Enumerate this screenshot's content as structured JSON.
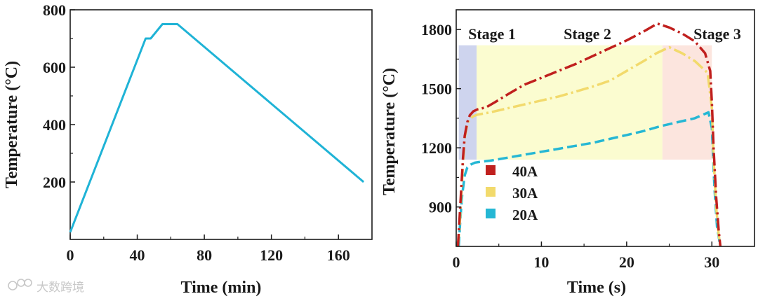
{
  "chart_data": [
    {
      "type": "line",
      "title": "",
      "xlabel": "Time (min)",
      "ylabel": "Temperature (°C)",
      "xlim": [
        0,
        180
      ],
      "ylim": [
        0,
        800
      ],
      "xticks": [
        0,
        40,
        80,
        120,
        160
      ],
      "yticks": [
        200,
        400,
        600,
        800
      ],
      "xtick_labels": [
        "0",
        "40",
        "80",
        "120",
        "160"
      ],
      "ytick_labels": [
        "200",
        "400",
        "600",
        "800"
      ],
      "grid": false,
      "series": [
        {
          "name": "temperature",
          "color": "#1fb3d6",
          "style": "solid",
          "x": [
            0,
            45,
            48,
            55,
            64,
            175
          ],
          "y": [
            25,
            700,
            700,
            750,
            750,
            200
          ]
        }
      ]
    },
    {
      "type": "line",
      "title": "",
      "xlabel": "Time (s)",
      "ylabel": "Temperature (°C)",
      "xlim": [
        0,
        35
      ],
      "ylim": [
        700,
        1900
      ],
      "xticks": [
        0,
        10,
        20,
        30
      ],
      "yticks": [
        900,
        1200,
        1500,
        1800
      ],
      "xtick_labels": [
        "0",
        "10",
        "20",
        "30"
      ],
      "ytick_labels": [
        "900",
        "1200",
        "1500",
        "1800"
      ],
      "grid": false,
      "legend_position": "bottom-left",
      "stages": [
        {
          "label": "Stage 1",
          "x_range": [
            0.3,
            2.4
          ],
          "y_range": [
            1140,
            1720
          ],
          "color": "#c5cdeb"
        },
        {
          "label": "Stage 2",
          "x_range": [
            2.4,
            24.2
          ],
          "y_range": [
            1140,
            1720
          ],
          "color": "#fafcc8"
        },
        {
          "label": "Stage 3",
          "x_range": [
            24.2,
            30.0
          ],
          "y_range": [
            1140,
            1720
          ],
          "color": "#fbe0d8"
        }
      ],
      "series": [
        {
          "name": "40A",
          "color": "#c0201e",
          "style": "dash-dot",
          "x": [
            0.2,
            0.4,
            0.6,
            0.8,
            1.0,
            1.3,
            1.6,
            2.0,
            2.5,
            3.5,
            4.5,
            6,
            8,
            10,
            12,
            14,
            16,
            18,
            20,
            22,
            23.6,
            25,
            26.5,
            28,
            29.2,
            29.8,
            30.0,
            30.2,
            30.5,
            30.8,
            31.0
          ],
          "y": [
            700,
            850,
            1000,
            1150,
            1260,
            1330,
            1365,
            1385,
            1395,
            1405,
            1430,
            1470,
            1520,
            1555,
            1590,
            1625,
            1665,
            1705,
            1745,
            1790,
            1830,
            1810,
            1780,
            1740,
            1680,
            1590,
            1430,
            1200,
            950,
            780,
            700
          ]
        },
        {
          "name": "30A",
          "color": "#f2da6c",
          "style": "dash-dot",
          "x": [
            0.2,
            0.4,
            0.6,
            0.8,
            1.0,
            1.3,
            1.6,
            2.0,
            2.5,
            4,
            6,
            8,
            10,
            12,
            14,
            16,
            18,
            20,
            22,
            23.5,
            25,
            26.5,
            28,
            29.5,
            30.0,
            30.2,
            30.5,
            30.8,
            31.0
          ],
          "y": [
            700,
            800,
            960,
            1120,
            1250,
            1320,
            1345,
            1360,
            1368,
            1380,
            1400,
            1420,
            1440,
            1460,
            1485,
            1510,
            1540,
            1590,
            1640,
            1680,
            1710,
            1680,
            1640,
            1580,
            1400,
            1150,
            900,
            760,
            700
          ]
        },
        {
          "name": "20A",
          "color": "#25b7d4",
          "style": "dash",
          "x": [
            0.3,
            0.5,
            0.7,
            1.0,
            1.3,
            1.7,
            2.2,
            3,
            4,
            6,
            8,
            10,
            12,
            14,
            16,
            18,
            20,
            22,
            24,
            26,
            28,
            29.6,
            30.0,
            30.3,
            30.6,
            31.0
          ],
          "y": [
            700,
            850,
            960,
            1060,
            1100,
            1115,
            1125,
            1130,
            1135,
            1150,
            1165,
            1180,
            1195,
            1210,
            1225,
            1245,
            1265,
            1285,
            1310,
            1330,
            1350,
            1380,
            1300,
            1000,
            800,
            700
          ]
        }
      ]
    }
  ],
  "watermark": {
    "text": "大数跨境"
  }
}
